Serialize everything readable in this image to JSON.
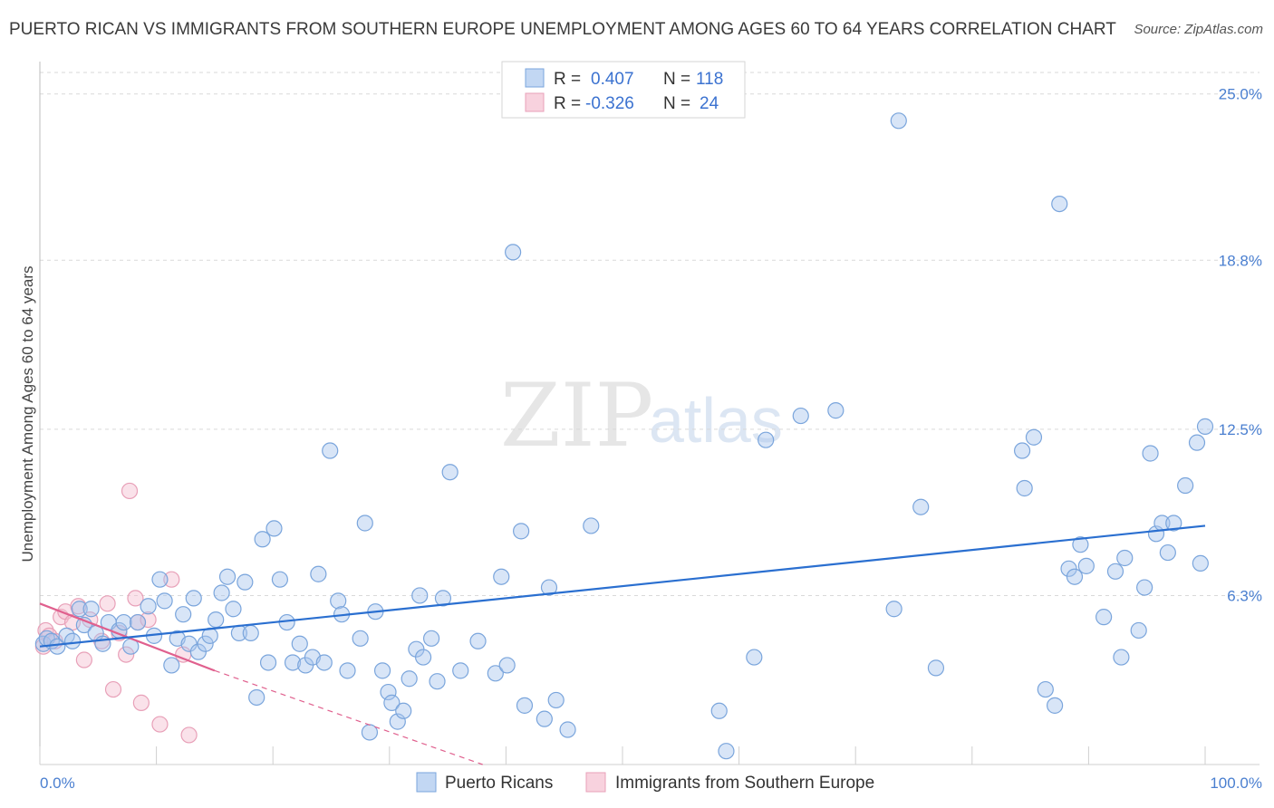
{
  "header": {
    "title": "PUERTO RICAN VS IMMIGRANTS FROM SOUTHERN EUROPE UNEMPLOYMENT AMONG AGES 60 TO 64 YEARS CORRELATION CHART",
    "source": "Source: ZipAtlas.com"
  },
  "watermark": {
    "zip": "ZIP",
    "atlas": "atlas"
  },
  "colors": {
    "blue": "#a8c6ee",
    "blue_stroke": "#7aa5dc",
    "blue_line": "#2a6fd0",
    "pink": "#f5bfd0",
    "pink_stroke": "#e8a0b8",
    "pink_line": "#e0608e",
    "tick_text": "#4a7fd0"
  },
  "legend": {
    "rows": [
      {
        "r_label": "R =",
        "r_value": "0.407",
        "n_label": "N =",
        "n_value": "118"
      },
      {
        "r_label": "R =",
        "r_value": "-0.326",
        "n_label": "N =",
        "n_value": "24"
      }
    ]
  },
  "bottom_legend": {
    "series1": "Puerto Ricans",
    "series2": "Immigrants from Southern Europe"
  },
  "chart_data": {
    "type": "scatter",
    "xlabel": "",
    "ylabel": "Unemployment Among Ages 60 to 64 years",
    "xlim": [
      0,
      100
    ],
    "ylim": [
      0,
      25.8
    ],
    "x_tick_labels": [
      "0.0%",
      "100.0%"
    ],
    "y_ticks": [
      6.3,
      12.5,
      18.8,
      25.0
    ],
    "y_tick_labels": [
      "6.3%",
      "12.5%",
      "18.8%",
      "25.0%"
    ],
    "series": [
      {
        "name": "Puerto Ricans",
        "r": 0.407,
        "n": 118,
        "trend": {
          "x": [
            0,
            100
          ],
          "y": [
            4.4,
            8.9
          ]
        },
        "points": [
          [
            0.3,
            4.5
          ],
          [
            0.6,
            4.7
          ],
          [
            1.0,
            4.6
          ],
          [
            1.5,
            4.4
          ],
          [
            2.3,
            4.8
          ],
          [
            2.8,
            4.6
          ],
          [
            3.4,
            5.8
          ],
          [
            3.8,
            5.2
          ],
          [
            4.4,
            5.8
          ],
          [
            4.8,
            4.9
          ],
          [
            5.4,
            4.5
          ],
          [
            5.9,
            5.3
          ],
          [
            6.8,
            5.0
          ],
          [
            7.2,
            5.3
          ],
          [
            7.8,
            4.4
          ],
          [
            8.4,
            5.3
          ],
          [
            9.3,
            5.9
          ],
          [
            9.8,
            4.8
          ],
          [
            10.3,
            6.9
          ],
          [
            10.7,
            6.1
          ],
          [
            11.3,
            3.7
          ],
          [
            11.8,
            4.7
          ],
          [
            12.3,
            5.6
          ],
          [
            12.8,
            4.5
          ],
          [
            13.2,
            6.2
          ],
          [
            13.6,
            4.2
          ],
          [
            14.2,
            4.5
          ],
          [
            14.6,
            4.8
          ],
          [
            15.1,
            5.4
          ],
          [
            15.6,
            6.4
          ],
          [
            16.1,
            7.0
          ],
          [
            16.6,
            5.8
          ],
          [
            17.1,
            4.9
          ],
          [
            17.6,
            6.8
          ],
          [
            18.1,
            4.9
          ],
          [
            18.6,
            2.5
          ],
          [
            19.1,
            8.4
          ],
          [
            19.6,
            3.8
          ],
          [
            20.1,
            8.8
          ],
          [
            20.6,
            6.9
          ],
          [
            21.2,
            5.3
          ],
          [
            21.7,
            3.8
          ],
          [
            22.3,
            4.5
          ],
          [
            22.8,
            3.7
          ],
          [
            23.4,
            4.0
          ],
          [
            23.9,
            7.1
          ],
          [
            24.4,
            3.8
          ],
          [
            24.9,
            11.7
          ],
          [
            25.6,
            6.1
          ],
          [
            25.9,
            5.6
          ],
          [
            26.4,
            3.5
          ],
          [
            27.5,
            4.7
          ],
          [
            27.9,
            9.0
          ],
          [
            28.3,
            1.2
          ],
          [
            28.8,
            5.7
          ],
          [
            29.4,
            3.5
          ],
          [
            29.9,
            2.7
          ],
          [
            30.2,
            2.3
          ],
          [
            30.7,
            1.6
          ],
          [
            31.2,
            2.0
          ],
          [
            31.7,
            3.2
          ],
          [
            32.3,
            4.3
          ],
          [
            32.6,
            6.3
          ],
          [
            32.9,
            4.0
          ],
          [
            33.6,
            4.7
          ],
          [
            34.1,
            3.1
          ],
          [
            34.6,
            6.2
          ],
          [
            35.2,
            10.9
          ],
          [
            36.1,
            3.5
          ],
          [
            37.6,
            4.6
          ],
          [
            39.1,
            3.4
          ],
          [
            39.6,
            7.0
          ],
          [
            40.1,
            3.7
          ],
          [
            40.6,
            19.1
          ],
          [
            41.3,
            8.7
          ],
          [
            41.6,
            2.2
          ],
          [
            43.3,
            1.7
          ],
          [
            43.7,
            6.6
          ],
          [
            44.3,
            2.4
          ],
          [
            45.3,
            1.3
          ],
          [
            47.3,
            8.9
          ],
          [
            58.3,
            2.0
          ],
          [
            58.9,
            0.5
          ],
          [
            61.3,
            4.0
          ],
          [
            62.3,
            12.1
          ],
          [
            65.3,
            13.0
          ],
          [
            68.3,
            13.2
          ],
          [
            73.3,
            5.8
          ],
          [
            73.7,
            24.0
          ],
          [
            75.6,
            9.6
          ],
          [
            76.9,
            3.6
          ],
          [
            84.3,
            11.7
          ],
          [
            84.5,
            10.3
          ],
          [
            85.3,
            12.2
          ],
          [
            86.3,
            2.8
          ],
          [
            87.1,
            2.2
          ],
          [
            87.5,
            20.9
          ],
          [
            88.3,
            7.3
          ],
          [
            88.8,
            7.0
          ],
          [
            89.3,
            8.2
          ],
          [
            89.8,
            7.4
          ],
          [
            91.3,
            5.5
          ],
          [
            92.3,
            7.2
          ],
          [
            92.8,
            4.0
          ],
          [
            93.1,
            7.7
          ],
          [
            94.3,
            5.0
          ],
          [
            94.8,
            6.6
          ],
          [
            95.3,
            11.6
          ],
          [
            95.8,
            8.6
          ],
          [
            96.3,
            9.0
          ],
          [
            96.8,
            7.9
          ],
          [
            97.3,
            9.0
          ],
          [
            98.3,
            10.4
          ],
          [
            99.3,
            12.0
          ],
          [
            99.6,
            7.5
          ],
          [
            100.0,
            12.6
          ]
        ]
      },
      {
        "name": "Immigrants from Southern Europe",
        "r": -0.326,
        "n": 24,
        "trend": {
          "x": [
            0,
            15
          ],
          "y": [
            6.0,
            3.5
          ]
        },
        "trend_extension": {
          "x": [
            15,
            38
          ],
          "y": [
            3.5,
            0
          ]
        },
        "points": [
          [
            0.3,
            4.4
          ],
          [
            0.5,
            5.0
          ],
          [
            0.8,
            4.8
          ],
          [
            1.3,
            4.6
          ],
          [
            1.8,
            5.5
          ],
          [
            2.2,
            5.7
          ],
          [
            2.8,
            5.3
          ],
          [
            3.3,
            5.9
          ],
          [
            3.8,
            3.9
          ],
          [
            4.3,
            5.4
          ],
          [
            5.3,
            4.6
          ],
          [
            5.8,
            6.0
          ],
          [
            6.3,
            2.8
          ],
          [
            6.8,
            4.9
          ],
          [
            7.4,
            4.1
          ],
          [
            7.7,
            10.2
          ],
          [
            8.2,
            6.2
          ],
          [
            8.4,
            5.3
          ],
          [
            8.7,
            2.3
          ],
          [
            9.3,
            5.4
          ],
          [
            10.3,
            1.5
          ],
          [
            11.3,
            6.9
          ],
          [
            12.3,
            4.1
          ],
          [
            12.8,
            1.1
          ]
        ]
      }
    ]
  }
}
